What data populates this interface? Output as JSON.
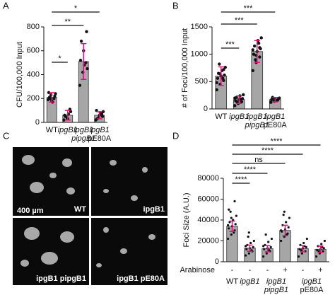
{
  "panel_labels": [
    "A",
    "B",
    "C",
    "D"
  ],
  "micrographs": {
    "scale_bar": "400 µm",
    "labels": [
      "WT",
      "ipgB1",
      "ipgB1 pipgB1",
      "ipgB1 pE80A"
    ]
  },
  "chart_data": [
    {
      "type": "bar",
      "y_label": "CFU/100,000 Input",
      "categories": [
        [
          "WT"
        ],
        [
          "ipgB1"
        ],
        [
          "ipgB1",
          "pipgB1"
        ],
        [
          "ipgB1",
          "pE80A"
        ]
      ],
      "values": [
        210,
        60,
        510,
        60
      ],
      "errors": [
        40,
        40,
        150,
        30
      ],
      "points": [
        [
          190,
          230,
          200,
          250,
          180,
          220,
          210,
          170,
          240,
          200
        ],
        [
          20,
          40,
          110,
          60,
          30,
          90,
          50,
          70
        ],
        [
          310,
          420,
          500,
          520,
          600,
          760,
          680,
          480,
          450
        ],
        [
          20,
          40,
          70,
          100,
          60,
          50,
          30,
          80,
          90
        ]
      ],
      "annotations": [
        "*",
        "**",
        "*"
      ],
      "ylim": [
        0,
        800
      ],
      "yticks": [
        0,
        200,
        400,
        600,
        800
      ],
      "color": "#a6a6a6",
      "error_color": "#e0107a"
    },
    {
      "type": "bar",
      "y_label": "# of Foci/100,000 Input",
      "categories": [
        [
          "WT"
        ],
        [
          "ipgB1"
        ],
        [
          "ipgB1",
          "pipgB1"
        ],
        [
          "ipgB1",
          "pE80A"
        ]
      ],
      "values": [
        600,
        170,
        1050,
        170
      ],
      "errors": [
        170,
        70,
        200,
        40
      ],
      "points": [
        [
          350,
          450,
          520,
          560,
          600,
          620,
          650,
          700,
          760,
          820,
          560,
          480,
          640,
          720
        ],
        [
          60,
          100,
          130,
          150,
          170,
          190,
          210,
          240,
          260,
          120,
          180,
          200
        ],
        [
          700,
          850,
          950,
          1000,
          1050,
          1100,
          1150,
          1250,
          1300,
          900,
          1200,
          1080,
          980,
          1120
        ],
        [
          120,
          140,
          160,
          170,
          180,
          190,
          210,
          150,
          200,
          175
        ]
      ],
      "annotations": [
        "***",
        "***",
        "***"
      ],
      "ylim": [
        0,
        1500
      ],
      "yticks": [
        0,
        500,
        1000,
        1500
      ],
      "color": "#a6a6a6",
      "error_color": "#e0107a"
    },
    {
      "type": "bar",
      "y_label": "Foci Size (A.U.)",
      "x_row_label": "Arabinose",
      "categories": [
        "-",
        "-",
        "-",
        "+",
        "-",
        "+"
      ],
      "groups": [
        [
          "WT"
        ],
        [
          "ipgB1"
        ],
        [
          "ipgB1",
          "pipgB1"
        ],
        [
          "ipgB1",
          "pE80A"
        ]
      ],
      "values": [
        34000,
        13000,
        12500,
        30000,
        12500,
        12000
      ],
      "errors": [
        5000,
        3000,
        3000,
        5000,
        3000,
        3000
      ],
      "points": [
        [
          22000,
          26000,
          30000,
          32000,
          34000,
          36000,
          38000,
          40000,
          44000,
          48000,
          28000,
          35000,
          42000,
          58000,
          50000
        ],
        [
          6000,
          8000,
          10000,
          12000,
          13000,
          14000,
          16000,
          18000,
          20000,
          24000,
          11000,
          15000,
          28000
        ],
        [
          5000,
          8000,
          10000,
          12000,
          13000,
          14000,
          16000,
          19000,
          22000,
          26000,
          11000,
          15000
        ],
        [
          20000,
          24000,
          27000,
          29000,
          31000,
          33000,
          35000,
          38000,
          42000,
          45000,
          26000,
          30000,
          48000
        ],
        [
          5000,
          8000,
          10000,
          12000,
          13000,
          14000,
          16000,
          18000,
          22000,
          11000,
          15000
        ],
        [
          5000,
          8000,
          10000,
          11000,
          12000,
          13000,
          15000,
          17000,
          20000,
          10000,
          14000
        ]
      ],
      "annotations": [
        "****",
        "****",
        "ns",
        "****",
        "****"
      ],
      "ylim": [
        0,
        80000
      ],
      "yticks": [
        0,
        20000,
        40000,
        60000,
        80000
      ],
      "color": "#a6a6a6",
      "error_color": "#e0107a"
    }
  ]
}
